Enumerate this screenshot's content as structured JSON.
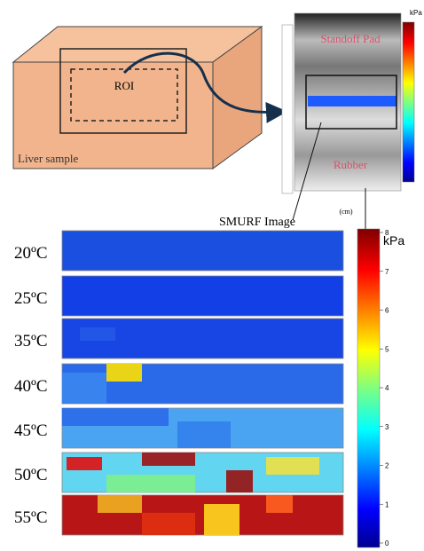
{
  "figure": {
    "sample": {
      "roi": "ROI",
      "label": "Liver sample"
    },
    "smurf": {
      "top_label": "Standoff Pad",
      "bottom_label": "Rubber",
      "axis_unit": "(cm)",
      "colorbar_unit": "kPa",
      "caption": "SMURF Image"
    },
    "panels": [
      {
        "label": "20ºC"
      },
      {
        "label": "25ºC"
      },
      {
        "label": "35ºC"
      },
      {
        "label": "40ºC"
      },
      {
        "label": "45ºC"
      },
      {
        "label": "50ºC"
      },
      {
        "label": "55ºC"
      }
    ],
    "colorbar": {
      "label": "kPa",
      "lim": [
        0,
        8
      ],
      "ticks": [
        0,
        1,
        2,
        3,
        4,
        5,
        6,
        7,
        8
      ]
    }
  }
}
